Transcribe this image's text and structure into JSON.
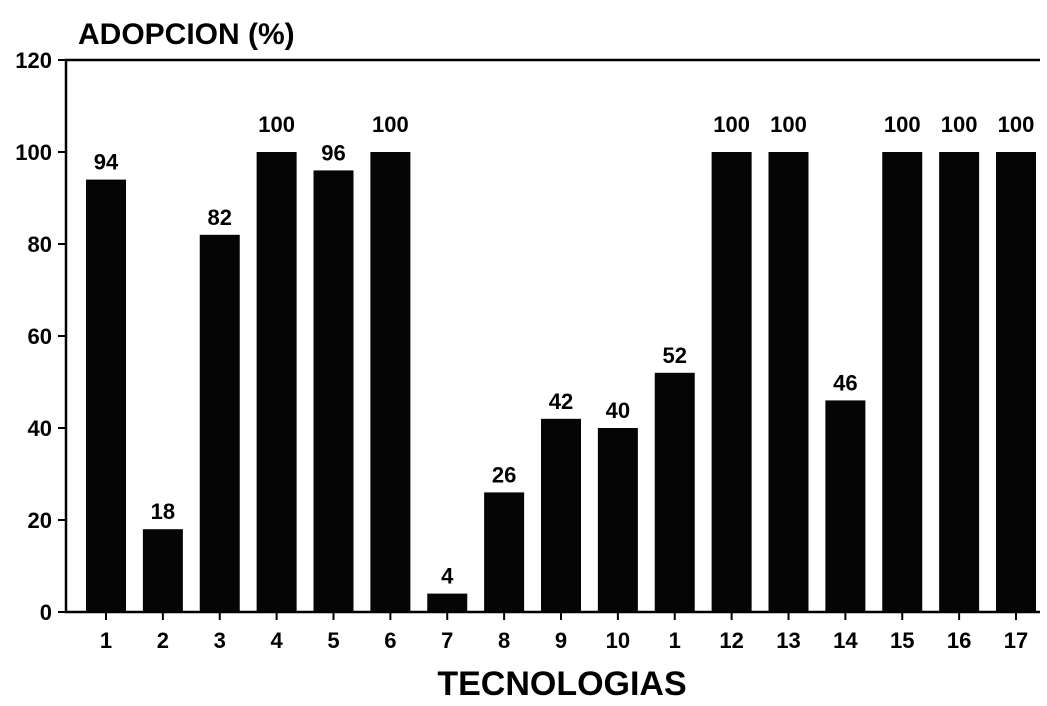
{
  "chart_data": {
    "type": "bar",
    "title": "",
    "ylabel": "ADOPCION (%)",
    "xlabel": "TECNOLOGIAS",
    "categories": [
      "1",
      "2",
      "3",
      "4",
      "5",
      "6",
      "7",
      "8",
      "9",
      "10",
      "1",
      "12",
      "13",
      "14",
      "15",
      "16",
      "17"
    ],
    "values": [
      94,
      18,
      82,
      100,
      96,
      100,
      4,
      26,
      42,
      40,
      52,
      100,
      100,
      46,
      100,
      100,
      100
    ],
    "data_labels": [
      "94",
      "18",
      "82",
      "100",
      "96",
      "100",
      "4",
      "26",
      "42",
      "40",
      "52",
      "100",
      "100",
      "46",
      "100",
      "100",
      "100"
    ],
    "ylim": [
      0,
      120
    ],
    "yticks": [
      0,
      20,
      40,
      60,
      80,
      100,
      120
    ],
    "grid": false,
    "legend": "none",
    "bar_color": "#050505"
  }
}
